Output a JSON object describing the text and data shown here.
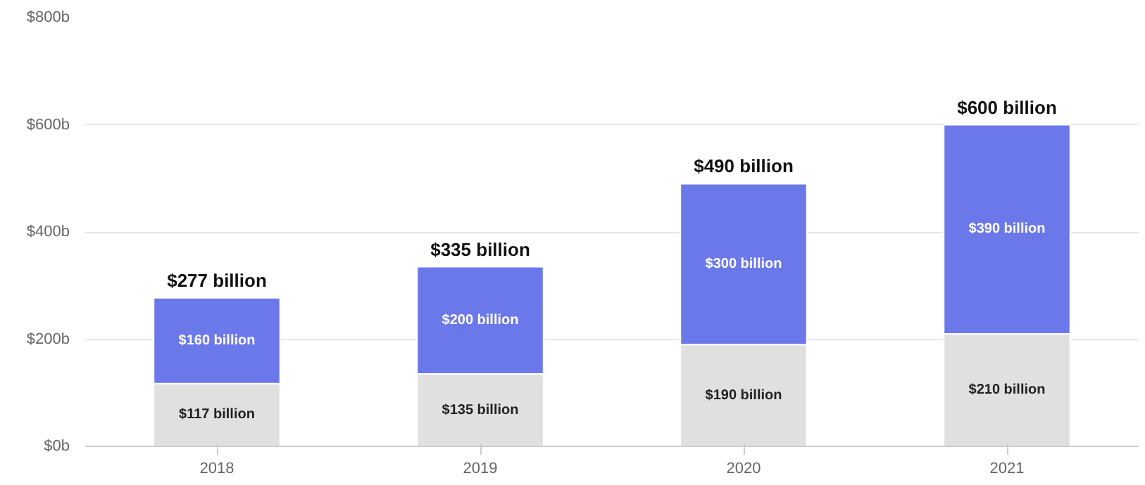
{
  "chart_data": {
    "type": "bar",
    "stacked": true,
    "categories": [
      "2018",
      "2019",
      "2020",
      "2021"
    ],
    "series": [
      {
        "color": "#e0e0e0",
        "values": [
          117,
          135,
          190,
          210
        ],
        "value_labels": [
          "$117 billion",
          "$135 billion",
          "$190 billion",
          "$210 billion"
        ]
      },
      {
        "color": "#6b78ea",
        "values": [
          160,
          200,
          300,
          390
        ],
        "value_labels": [
          "$160 billion",
          "$200 billion",
          "$300 billion",
          "$390 billion"
        ]
      }
    ],
    "totals": [
      "$277 billion",
      "$335 billion",
      "$490 billion",
      "$600 billion"
    ],
    "ylim": [
      0,
      800
    ],
    "yticks": [
      {
        "value": 0,
        "label": "$0b"
      },
      {
        "value": 200,
        "label": "$200b"
      },
      {
        "value": 400,
        "label": "$400b"
      },
      {
        "value": 600,
        "label": "$600b"
      },
      {
        "value": 800,
        "label": "$800b"
      }
    ],
    "grid": "y"
  }
}
